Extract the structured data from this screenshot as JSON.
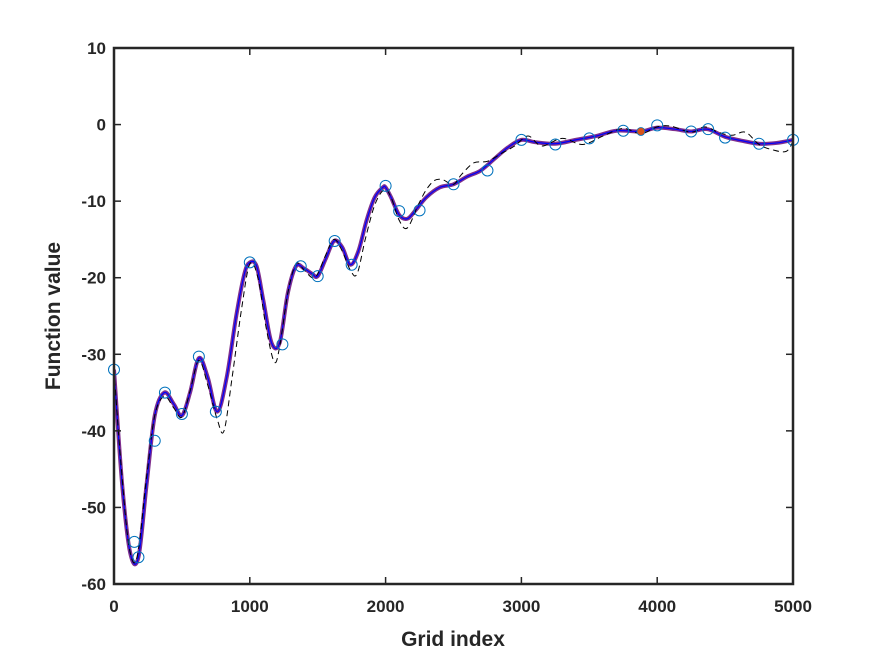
{
  "chart_data": {
    "type": "line",
    "title": "",
    "xlabel": "Grid index",
    "ylabel": "Function value",
    "xlim": [
      0,
      5000
    ],
    "ylim": [
      -60,
      10
    ],
    "xticks": [
      "0",
      "1000",
      "2000",
      "3000",
      "4000",
      "5000"
    ],
    "yticks": [
      "10",
      "0",
      "-10",
      "-20",
      "-30",
      "-40",
      "-50",
      "-60"
    ],
    "grid": false,
    "legend": "none",
    "colors": {
      "smooth": "#7e2f8e",
      "smooth_overlay": "#0000ff",
      "dashed": "#000000",
      "markers": "#0072bd",
      "highlight": "#d95319",
      "axes": "#262626"
    },
    "series": [
      {
        "style": "solid-thick",
        "x": [
          0,
          60,
          120,
          180,
          240,
          300,
          370,
          440,
          500,
          560,
          625,
          690,
          760,
          830,
          900,
          960,
          1000,
          1050,
          1100,
          1160,
          1220,
          1280,
          1340,
          1400,
          1460,
          1500,
          1560,
          1620,
          1680,
          1740,
          1800,
          1860,
          1920,
          1980,
          2000,
          2040,
          2100,
          2160,
          2220,
          2300,
          2400,
          2500,
          2600,
          2700,
          2800,
          2900,
          3000,
          3100,
          3250,
          3400,
          3550,
          3700,
          3880,
          4000,
          4130,
          4250,
          4370,
          4500,
          4620,
          4750,
          4880,
          5000
        ],
        "values": [
          -32,
          -47,
          -56,
          -56.5,
          -47,
          -38,
          -35,
          -36.5,
          -38,
          -35,
          -30.5,
          -33,
          -37.5,
          -33,
          -25,
          -19.5,
          -18,
          -18.5,
          -23,
          -28.5,
          -28.5,
          -22,
          -18.5,
          -18.8,
          -19.5,
          -19.8,
          -17.5,
          -15.2,
          -16,
          -18.3,
          -16.5,
          -12.5,
          -9.5,
          -8.2,
          -8.2,
          -9.5,
          -11.8,
          -12.3,
          -11.2,
          -9.5,
          -8.2,
          -7.8,
          -6.8,
          -6.0,
          -4.5,
          -3.0,
          -2.0,
          -2.3,
          -2.5,
          -2.0,
          -1.5,
          -0.8,
          -0.9,
          -0.4,
          -0.6,
          -0.9,
          -0.6,
          -1.6,
          -2.1,
          -2.5,
          -2.4,
          -2.0
        ]
      },
      {
        "style": "dashed",
        "x": [
          0,
          50,
          110,
          170,
          240,
          300,
          370,
          440,
          500,
          560,
          625,
          690,
          760,
          810,
          870,
          940,
          1000,
          1060,
          1120,
          1180,
          1220,
          1280,
          1340,
          1400,
          1460,
          1500,
          1560,
          1620,
          1680,
          1740,
          1790,
          1850,
          1920,
          1990,
          2040,
          2100,
          2160,
          2240,
          2300,
          2360,
          2420,
          2500,
          2560,
          2650,
          2750,
          2850,
          2950,
          3050,
          3150,
          3300,
          3450,
          3600,
          3750,
          3880,
          4000,
          4100,
          4250,
          4350,
          4450,
          4550,
          4650,
          4750,
          4850,
          4950,
          5000
        ],
        "values": [
          -32,
          -44,
          -55,
          -56.5,
          -46,
          -38,
          -35.5,
          -37,
          -38.2,
          -34.8,
          -30.8,
          -34,
          -38.5,
          -40,
          -33,
          -24,
          -18.2,
          -20,
          -26.5,
          -31,
          -29,
          -22,
          -18.2,
          -19,
          -20,
          -19.5,
          -17,
          -15,
          -16.5,
          -19,
          -19.5,
          -15,
          -10.5,
          -8.5,
          -9.5,
          -12.5,
          -13.5,
          -10.5,
          -8.5,
          -7.3,
          -7.2,
          -7.8,
          -6.5,
          -5.0,
          -4.8,
          -3.8,
          -2.8,
          -1.5,
          -2.8,
          -1.8,
          -2.6,
          -1.5,
          -0.5,
          -1.2,
          -0.3,
          -0.2,
          -1.0,
          -0.3,
          -1.0,
          -1.4,
          -1.0,
          -2.6,
          -3.3,
          -3.5,
          -2.2
        ]
      },
      {
        "style": "markers",
        "x": [
          0,
          150,
          180,
          300,
          375,
          500,
          625,
          750,
          1000,
          1240,
          1375,
          1500,
          1625,
          1750,
          2000,
          2100,
          2250,
          2500,
          2750,
          3000,
          3250,
          3500,
          3750,
          4000,
          4250,
          4375,
          4500,
          4750,
          5000
        ],
        "values": [
          -32,
          -54.5,
          -56.5,
          -41.3,
          -35,
          -37.8,
          -30.3,
          -37.5,
          -18,
          -28.7,
          -18.5,
          -19.8,
          -15.2,
          -18.3,
          -8,
          -11.3,
          -11.2,
          -7.8,
          -6,
          -2,
          -2.6,
          -1.8,
          -0.8,
          -0.1,
          -0.9,
          -0.6,
          -1.7,
          -2.5,
          -2
        ]
      },
      {
        "style": "highlight",
        "x": [
          3880
        ],
        "values": [
          -0.9
        ]
      }
    ]
  }
}
